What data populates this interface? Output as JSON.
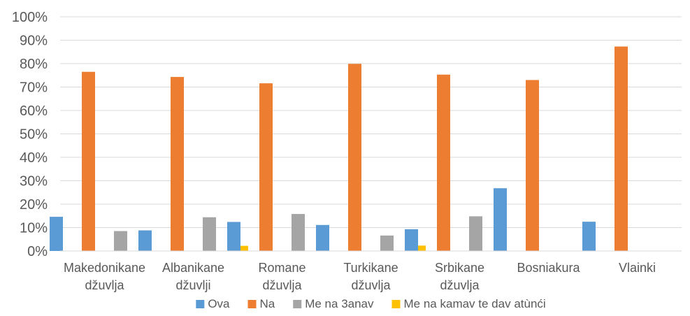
{
  "chart_data": {
    "type": "bar",
    "categories": [
      [
        "Makedonikane",
        "džuvlja"
      ],
      [
        "Albanikane",
        "džuvlji"
      ],
      [
        "Romane",
        "džuvlja"
      ],
      [
        "Turkikane",
        "džuvlja"
      ],
      [
        "Srbikane",
        "džuvlja"
      ],
      [
        "Bosniakura"
      ],
      [
        "Vlainki"
      ]
    ],
    "series": [
      {
        "name": "Ova",
        "color": "#5B9BD5",
        "values": [
          14.6,
          8.8,
          12.4,
          11.1,
          9.3,
          26.8,
          12.5
        ]
      },
      {
        "name": "Na",
        "color": "#ED7D31",
        "values": [
          76.5,
          74.3,
          71.6,
          79.9,
          75.3,
          73.0,
          87.3
        ]
      },
      {
        "name": "Me na 3anav",
        "color": "#A5A5A5",
        "values": [
          8.5,
          14.4,
          15.8,
          6.6,
          14.8,
          0,
          0
        ]
      },
      {
        "name": "Me na kamav te dav atùnći",
        "color": "#FFC000",
        "values": [
          0,
          2.2,
          0,
          2.3,
          0,
          0,
          0
        ]
      }
    ],
    "ylim": [
      0,
      100
    ],
    "yticks": [
      "0%",
      "10%",
      "20%",
      "30%",
      "40%",
      "50%",
      "60%",
      "70%",
      "80%",
      "90%",
      "100%"
    ],
    "grid": true,
    "legend_position": "bottom"
  }
}
